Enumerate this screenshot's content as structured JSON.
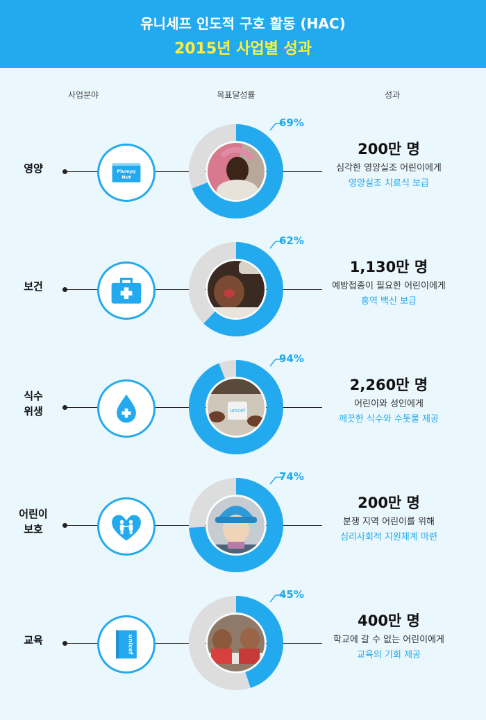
{
  "header": {
    "title": "유니세프 인도적 구호 활동 (HAC)",
    "subtitle": "2015년 사업별 성과"
  },
  "columns": {
    "category": "사업분야",
    "rate": "목표달성률",
    "result": "성과"
  },
  "colors": {
    "accent": "#23aaee",
    "track": "#dddddd",
    "background": "#eaf7fc",
    "subtitle": "#ffef3a"
  },
  "chart_data": {
    "type": "donut",
    "title": "",
    "categories": [
      "영양",
      "보건",
      "식수 위생",
      "어린이 보호",
      "교육"
    ],
    "values": [
      69,
      62,
      94,
      74,
      45
    ],
    "unit": "%",
    "max": 100
  },
  "rows": [
    {
      "category": "영양",
      "pct_label": "69%",
      "icon": "plumpy-nut-icon",
      "icon_text": [
        "Plumpy",
        "Nut"
      ],
      "photo": "child-nutrition-photo",
      "amount": "200만 명",
      "desc": "심각한 영양실조 어린이에게",
      "highlight": "영양실조 치료식 보급"
    },
    {
      "category": "보건",
      "pct_label": "62%",
      "icon": "medical-kit-icon",
      "photo": "child-vaccination-photo",
      "amount": "1,130만 명",
      "desc": "예방접종이 필요한 어린이에게",
      "highlight": "홍역 백신 보급"
    },
    {
      "category": "식수\n위생",
      "pct_label": "94%",
      "icon": "water-drop-icon",
      "photo": "clean-water-photo",
      "amount": "2,260만 명",
      "desc": "어린이와 성인에게",
      "highlight": "깨끗한 식수와 수돗물 제공"
    },
    {
      "category": "어린이\n보호",
      "pct_label": "74%",
      "icon": "heart-children-icon",
      "photo": "child-protection-photo",
      "amount": "200만 명",
      "desc": "분쟁 지역 어린이를 위해",
      "highlight": "심리사회적 지원체계 마련"
    },
    {
      "category": "교육",
      "pct_label": "45%",
      "icon": "unicef-book-icon",
      "icon_text": [
        "unicef"
      ],
      "photo": "classroom-photo",
      "amount": "400만 명",
      "desc": "학교에 갈 수 없는 어린이에게",
      "highlight": "교육의 기회 제공"
    }
  ]
}
